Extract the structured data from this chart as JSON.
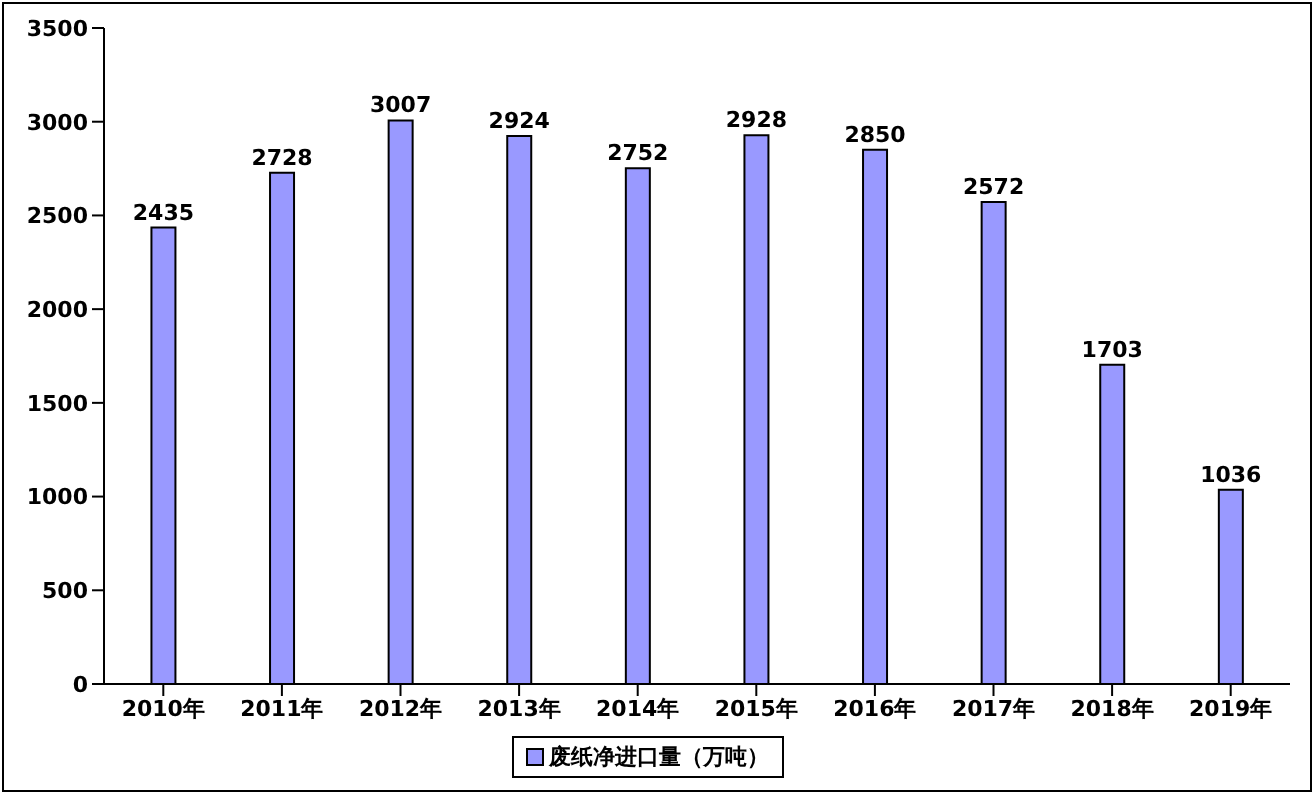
{
  "chart_data": {
    "type": "bar",
    "categories": [
      "2010年",
      "2011年",
      "2012年",
      "2013年",
      "2014年",
      "2015年",
      "2016年",
      "2017年",
      "2018年",
      "2019年"
    ],
    "series": [
      {
        "name": "废纸净进口量（万吨）",
        "color": "#9999ff",
        "values": [
          2435,
          2728,
          3007,
          2924,
          2752,
          2928,
          2850,
          2572,
          1703,
          1036
        ]
      }
    ],
    "ylim": [
      0,
      3500
    ],
    "yticks": [
      0,
      500,
      1000,
      1500,
      2000,
      2500,
      3000,
      3500
    ],
    "data_labels": true,
    "legend": "bottom"
  }
}
